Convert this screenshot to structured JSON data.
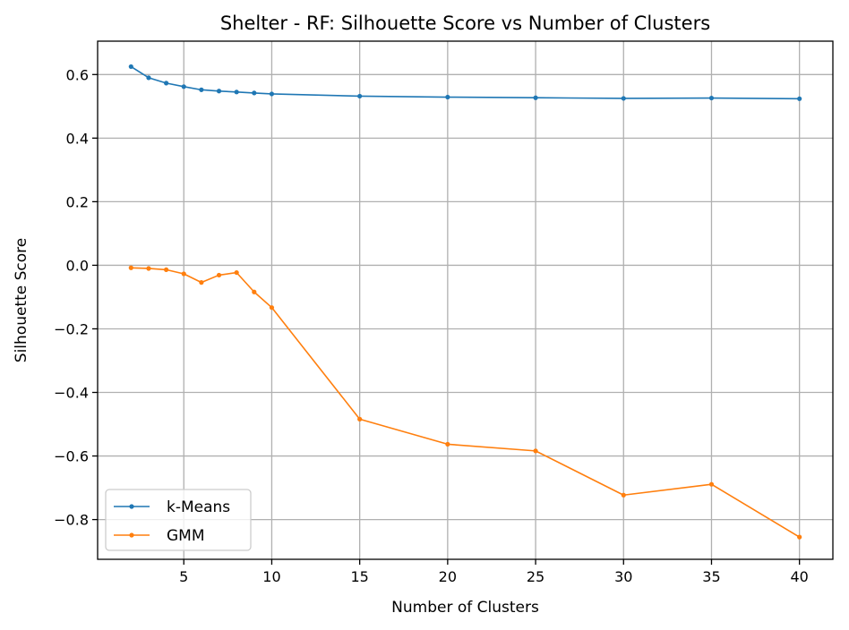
{
  "chart_data": {
    "type": "line",
    "title": "Shelter - RF: Silhouette Score vs Number of Clusters",
    "xlabel": "Number of Clusters",
    "ylabel": "Silhouette Score",
    "xlim": [
      0.1,
      41.9
    ],
    "ylim": [
      -0.925,
      0.705
    ],
    "xticks": [
      5,
      10,
      15,
      20,
      25,
      30,
      35,
      40
    ],
    "xtick_labels": [
      "5",
      "10",
      "15",
      "20",
      "25",
      "30",
      "35",
      "40"
    ],
    "yticks": [
      -0.8,
      -0.6,
      -0.4,
      -0.2,
      0.0,
      0.2,
      0.4,
      0.6
    ],
    "ytick_labels": [
      "−0.8",
      "−0.6",
      "−0.4",
      "−0.2",
      "0.0",
      "0.2",
      "0.4",
      "0.6"
    ],
    "grid": true,
    "legend_position": "lower-left",
    "x": [
      2,
      3,
      4,
      5,
      6,
      7,
      8,
      9,
      10,
      15,
      20,
      25,
      30,
      35,
      40
    ],
    "series": [
      {
        "name": "k-Means",
        "color": "#1f77b4",
        "values": [
          0.625,
          0.59,
          0.573,
          0.562,
          0.552,
          0.548,
          0.545,
          0.542,
          0.539,
          0.532,
          0.529,
          0.527,
          0.525,
          0.526,
          0.524
        ]
      },
      {
        "name": "GMM",
        "color": "#ff7f0e",
        "values": [
          -0.008,
          -0.01,
          -0.014,
          -0.027,
          -0.054,
          -0.031,
          -0.023,
          -0.084,
          -0.133,
          -0.484,
          -0.563,
          -0.584,
          -0.723,
          -0.689,
          -0.855
        ]
      }
    ]
  }
}
